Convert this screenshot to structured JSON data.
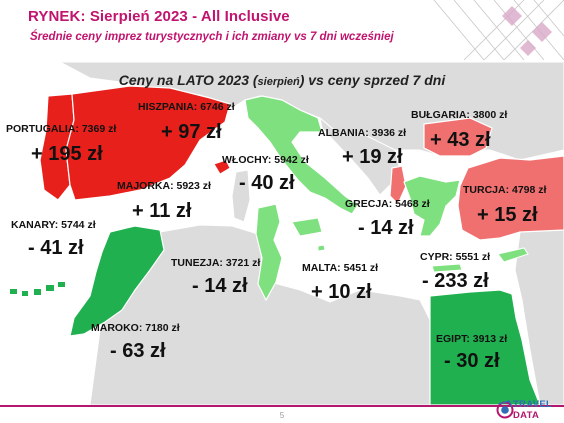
{
  "header": {
    "title": "RYNEK: Sierpień 2023 - All Inclusive",
    "subtitle": "Średnie ceny imprez turystycznych i ich zmiany vs 7 dni wcześniej"
  },
  "map": {
    "heading_part1": "Ceny na LATO 2023 (",
    "heading_small": "sierpień",
    "heading_part2": ") vs ceny sprzed 7 dni",
    "colors": {
      "sea": "#ffffff",
      "land_other": "#dcdcdc",
      "increase_strong": "#e8201c",
      "increase_light": "#f07070",
      "decrease_light": "#7ee07e",
      "decrease_strong": "#20b050"
    },
    "destinations": [
      {
        "id": "portugalia",
        "label": "PORTUGALIA: 7369 zł",
        "change": "+ 195 zł"
      },
      {
        "id": "hiszpania",
        "label": "HISZPANIA: 6746 zł",
        "change": "+ 97 zł"
      },
      {
        "id": "majorka",
        "label": "MAJORKA: 5923 zł",
        "change": "+ 11 zł"
      },
      {
        "id": "kanary",
        "label": "KANARY: 5744 zł",
        "change": "- 41 zł"
      },
      {
        "id": "maroko",
        "label": "MAROKO: 7180 zł",
        "change": "- 63 zł"
      },
      {
        "id": "tunezja",
        "label": "TUNEZJA: 3721 zł",
        "change": "- 14 zł"
      },
      {
        "id": "wlochy",
        "label": "WŁOCHY: 5942 zł",
        "change": "- 40 zł"
      },
      {
        "id": "malta",
        "label": "MALTA: 5451 zł",
        "change": "+ 10 zł"
      },
      {
        "id": "albania",
        "label": "ALBANIA: 3936 zł",
        "change": "+ 19 zł"
      },
      {
        "id": "grecja",
        "label": "GRECJA: 5468 zł",
        "change": "- 14 zł"
      },
      {
        "id": "bulgaria",
        "label": "BUŁGARIA: 3800 zł",
        "change": "+ 43 zł"
      },
      {
        "id": "turcja",
        "label": "TURCJA: 4798 zł",
        "change": "+ 15 zł"
      },
      {
        "id": "cypr",
        "label": "CYPR: 5551 zł",
        "change": "- 233 zł"
      },
      {
        "id": "egipt",
        "label": "EGIPT: 3913 zł",
        "change": "- 30 zł"
      }
    ]
  },
  "footer": {
    "page_number": "5",
    "logo_line1": "TRAVEL",
    "logo_line2": "DATA"
  }
}
